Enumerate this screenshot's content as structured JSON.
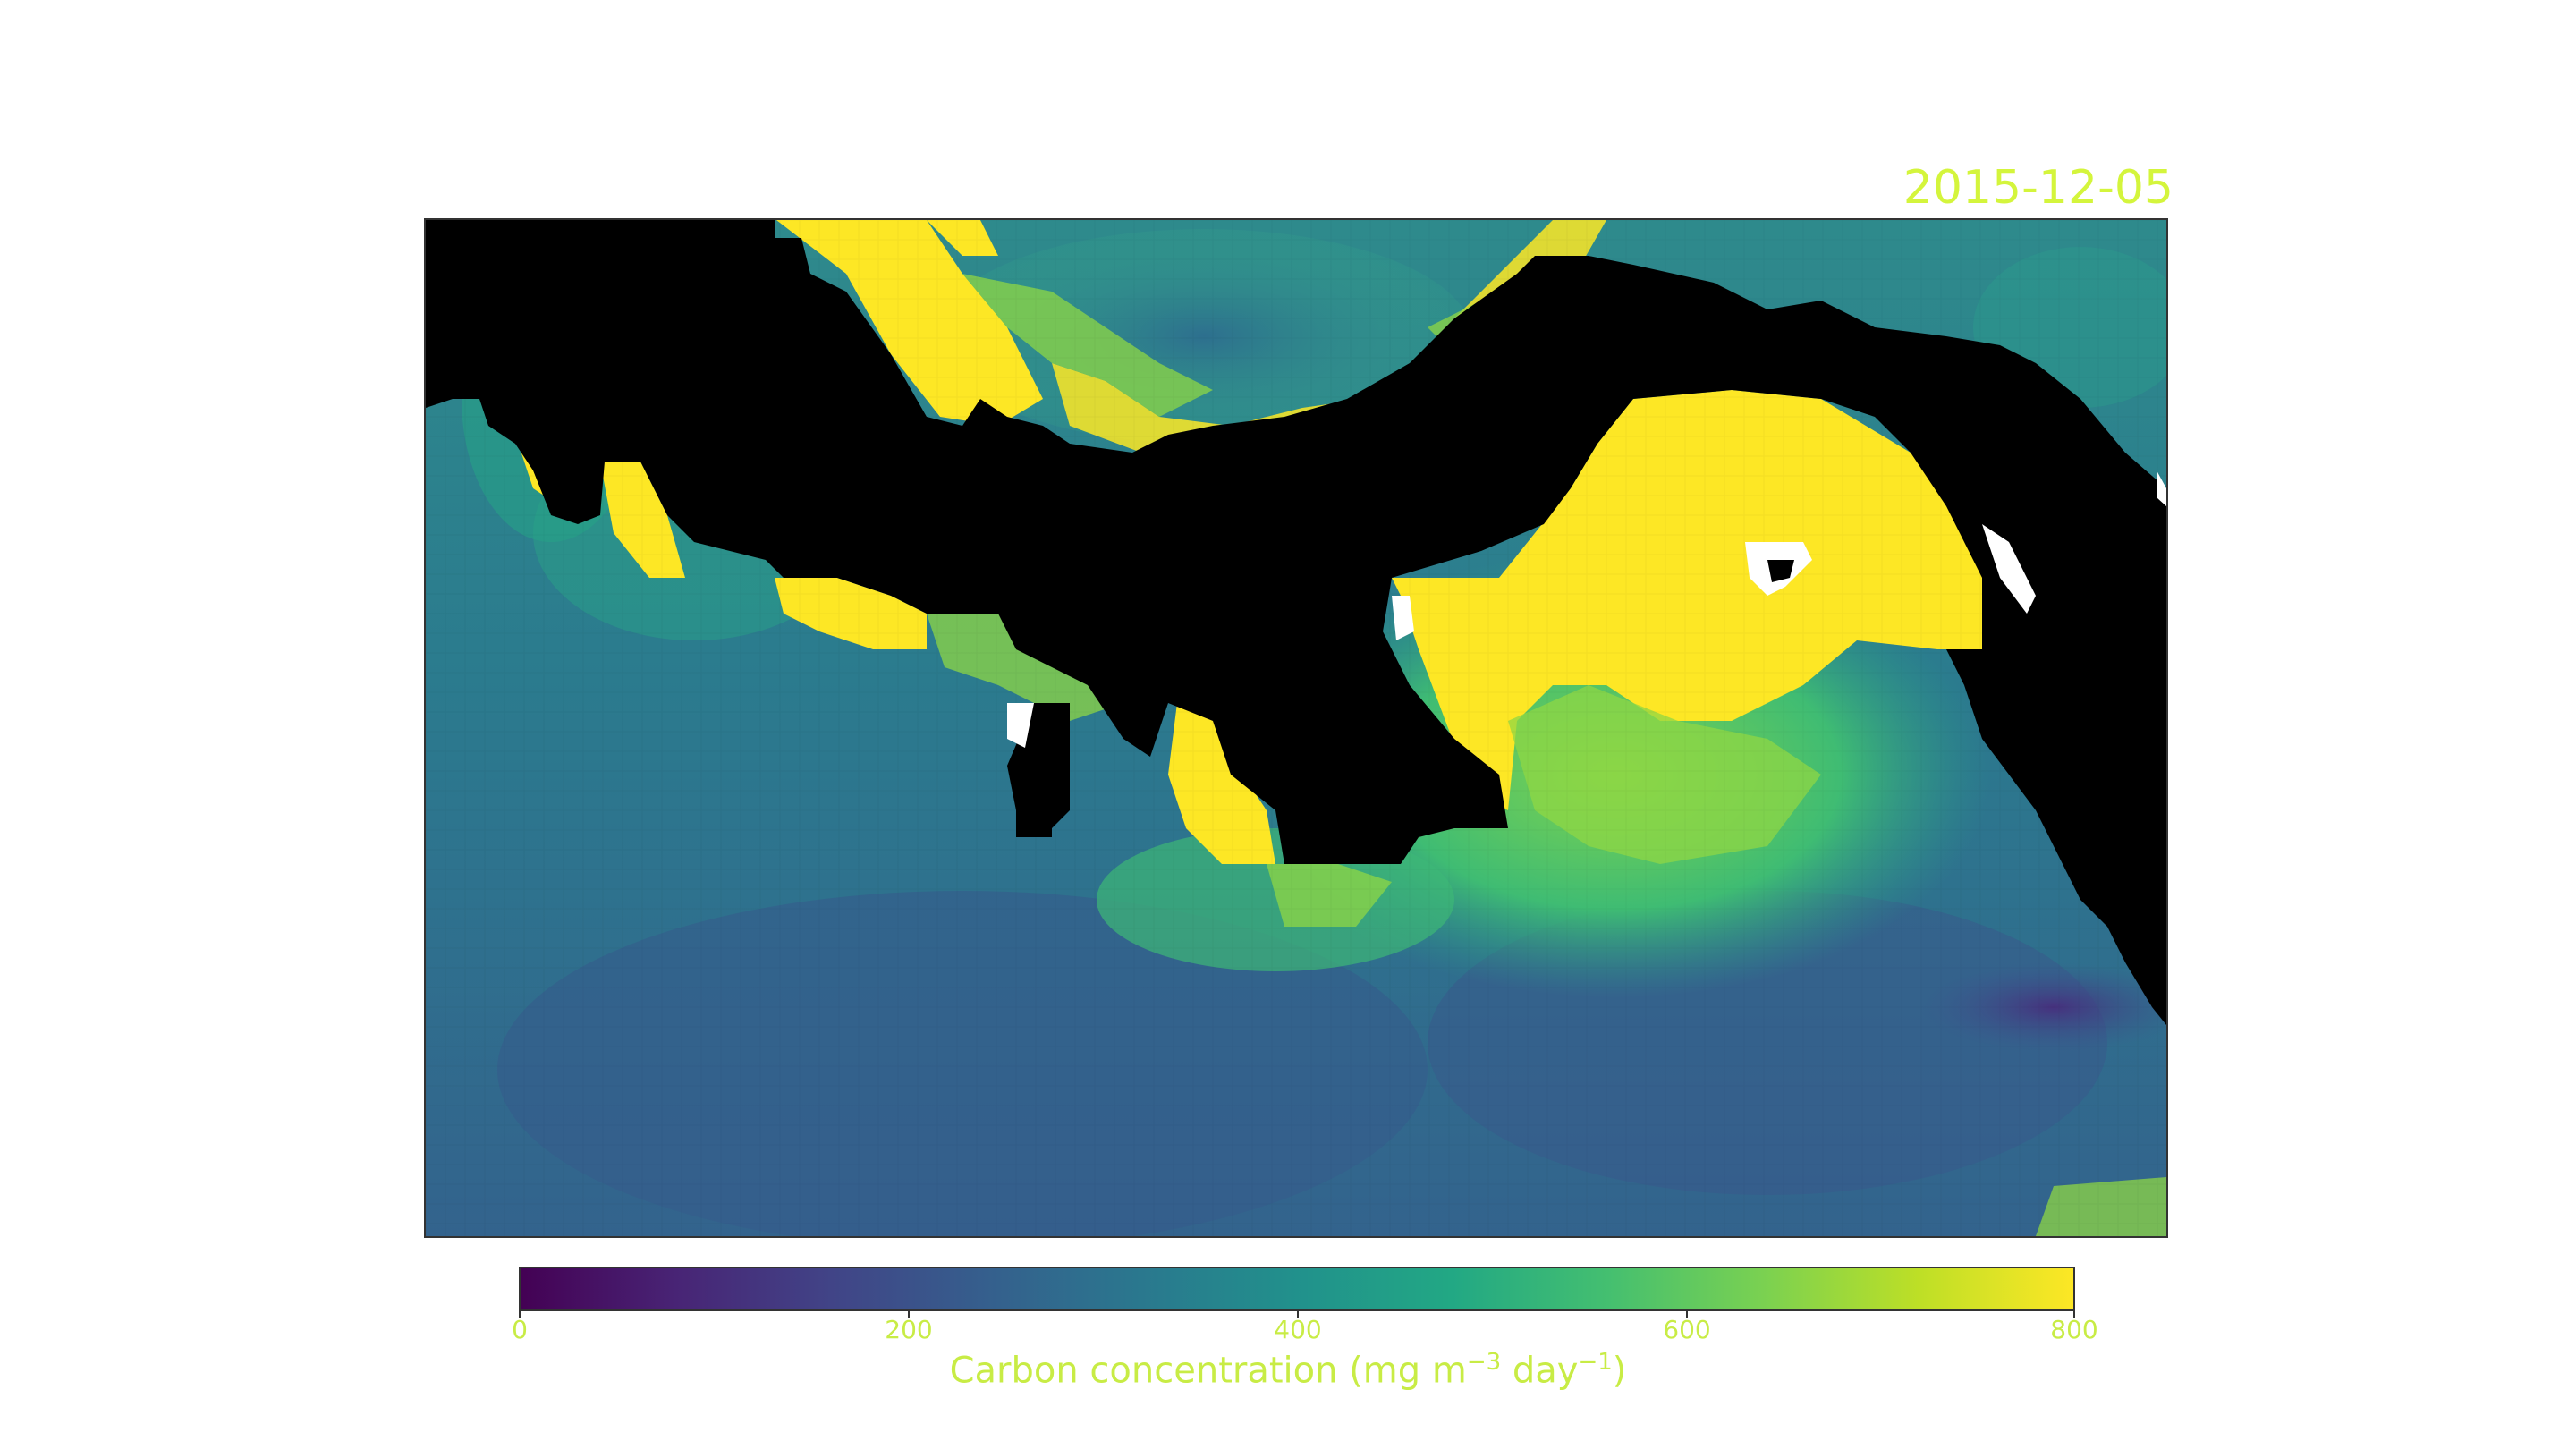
{
  "date_label": "2015-12-05",
  "colorbar": {
    "label_prefix": "Carbon concentration (mg m",
    "label_exp1": "−3",
    "label_mid": " day",
    "label_exp2": "−1",
    "label_suffix": ")",
    "ticks": [
      "0",
      "200",
      "400",
      "600",
      "800"
    ],
    "range": [
      0,
      800
    ],
    "colormap": "viridis"
  },
  "colors": {
    "land": "#000000",
    "text_accent": "#c8ec45",
    "high_value": "#fde725",
    "low_value": "#440154"
  }
}
